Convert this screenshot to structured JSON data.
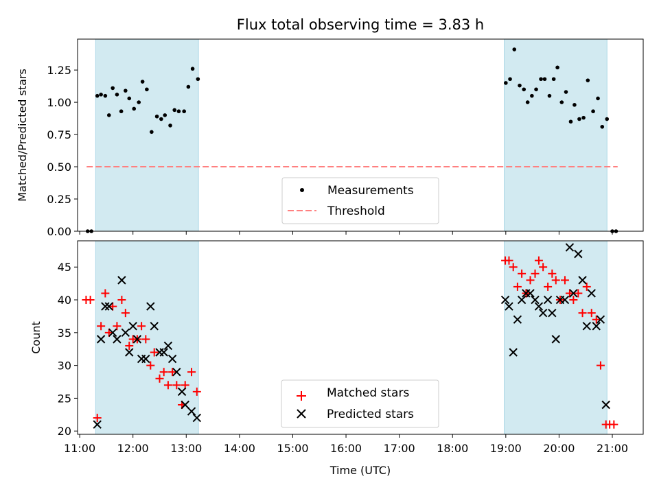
{
  "chart_data": {
    "type": "scatter",
    "title": "Flux total observing time = 3.83 h",
    "xlabel": "Time (UTC)",
    "x_unit": "hours UTC",
    "xlim": [
      10.96,
      21.58
    ],
    "x_ticks": [
      11,
      12,
      13,
      14,
      15,
      16,
      17,
      18,
      19,
      20,
      21
    ],
    "x_tick_labels": [
      "11:00",
      "12:00",
      "13:00",
      "14:00",
      "15:00",
      "16:00",
      "17:00",
      "18:00",
      "19:00",
      "20:00",
      "21:00"
    ],
    "observing_windows": [
      [
        11.3,
        13.23
      ],
      [
        18.97,
        20.9
      ]
    ],
    "shade_color": "#add8e6",
    "panels": [
      {
        "name": "ratio",
        "ylabel": "Matched/Predicted stars",
        "ylim": [
          0.0,
          1.49
        ],
        "y_ticks": [
          0.0,
          0.25,
          0.5,
          0.75,
          1.0,
          1.25
        ],
        "y_tick_labels": [
          "0.00",
          "0.25",
          "0.50",
          "0.75",
          "1.00",
          "1.25"
        ],
        "threshold": {
          "label": "Threshold",
          "value": 0.5,
          "x_range": [
            11.13,
            21.1
          ],
          "color": "#ff8080"
        },
        "legend": [
          "Measurements",
          "Threshold"
        ],
        "series": [
          {
            "name": "Measurements",
            "color": "#000000",
            "marker": "dot",
            "points": [
              [
                11.15,
                0.0
              ],
              [
                11.22,
                0.0
              ],
              [
                11.33,
                1.05
              ],
              [
                11.4,
                1.06
              ],
              [
                11.48,
                1.05
              ],
              [
                11.55,
                0.9
              ],
              [
                11.62,
                1.11
              ],
              [
                11.7,
                1.06
              ],
              [
                11.78,
                0.93
              ],
              [
                11.86,
                1.09
              ],
              [
                11.93,
                1.03
              ],
              [
                12.02,
                0.95
              ],
              [
                12.11,
                1.0
              ],
              [
                12.18,
                1.16
              ],
              [
                12.26,
                1.1
              ],
              [
                12.35,
                0.77
              ],
              [
                12.45,
                0.89
              ],
              [
                12.53,
                0.87
              ],
              [
                12.6,
                0.9
              ],
              [
                12.7,
                0.82
              ],
              [
                12.78,
                0.94
              ],
              [
                12.86,
                0.93
              ],
              [
                12.96,
                0.93
              ],
              [
                13.04,
                1.12
              ],
              [
                13.12,
                1.26
              ],
              [
                13.22,
                1.18
              ],
              [
                19.0,
                1.15
              ],
              [
                19.08,
                1.18
              ],
              [
                19.16,
                1.41
              ],
              [
                19.26,
                1.13
              ],
              [
                19.34,
                1.1
              ],
              [
                19.41,
                1.0
              ],
              [
                19.49,
                1.05
              ],
              [
                19.57,
                1.1
              ],
              [
                19.66,
                1.18
              ],
              [
                19.73,
                1.18
              ],
              [
                19.82,
                1.05
              ],
              [
                19.9,
                1.18
              ],
              [
                19.97,
                1.27
              ],
              [
                20.05,
                1.0
              ],
              [
                20.13,
                1.08
              ],
              [
                20.22,
                0.85
              ],
              [
                20.29,
                0.98
              ],
              [
                20.38,
                0.87
              ],
              [
                20.46,
                0.88
              ],
              [
                20.54,
                1.17
              ],
              [
                20.64,
                0.93
              ],
              [
                20.73,
                1.03
              ],
              [
                20.81,
                0.81
              ],
              [
                20.9,
                0.87
              ],
              [
                21.0,
                0.0
              ],
              [
                21.07,
                0.0
              ]
            ]
          }
        ]
      },
      {
        "name": "counts",
        "ylabel": "Count",
        "ylim": [
          19.5,
          49.0
        ],
        "y_ticks": [
          20,
          25,
          30,
          35,
          40,
          45
        ],
        "y_tick_labels": [
          "20",
          "25",
          "30",
          "35",
          "40",
          "45"
        ],
        "legend": [
          "Matched stars",
          "Predicted stars"
        ],
        "series": [
          {
            "name": "Matched stars",
            "color": "#ff0000",
            "marker": "plus",
            "points": [
              [
                11.12,
                40
              ],
              [
                11.2,
                40
              ],
              [
                11.33,
                22
              ],
              [
                11.4,
                36
              ],
              [
                11.48,
                41
              ],
              [
                11.55,
                35
              ],
              [
                11.62,
                39
              ],
              [
                11.7,
                36
              ],
              [
                11.79,
                40
              ],
              [
                11.86,
                38
              ],
              [
                11.93,
                33
              ],
              [
                12.0,
                34
              ],
              [
                12.08,
                34
              ],
              [
                12.16,
                36
              ],
              [
                12.24,
                34
              ],
              [
                12.33,
                30
              ],
              [
                12.4,
                32
              ],
              [
                12.5,
                28
              ],
              [
                12.58,
                29
              ],
              [
                12.66,
                27
              ],
              [
                12.74,
                29
              ],
              [
                12.82,
                27
              ],
              [
                12.92,
                24
              ],
              [
                12.98,
                27
              ],
              [
                13.1,
                29
              ],
              [
                13.2,
                26
              ],
              [
                18.99,
                46
              ],
              [
                19.06,
                46
              ],
              [
                19.14,
                45
              ],
              [
                19.22,
                42
              ],
              [
                19.3,
                44
              ],
              [
                19.38,
                41
              ],
              [
                19.46,
                43
              ],
              [
                19.55,
                44
              ],
              [
                19.62,
                46
              ],
              [
                19.7,
                45
              ],
              [
                19.79,
                42
              ],
              [
                19.87,
                44
              ],
              [
                19.94,
                43
              ],
              [
                20.02,
                40
              ],
              [
                20.11,
                43
              ],
              [
                20.2,
                41
              ],
              [
                20.27,
                40
              ],
              [
                20.36,
                41
              ],
              [
                20.44,
                38
              ],
              [
                20.52,
                42
              ],
              [
                20.61,
                38
              ],
              [
                20.7,
                37
              ],
              [
                20.78,
                30
              ],
              [
                20.88,
                21
              ],
              [
                20.95,
                21
              ],
              [
                21.03,
                21
              ]
            ]
          },
          {
            "name": "Predicted stars",
            "color": "#000000",
            "marker": "x",
            "points": [
              [
                11.33,
                21
              ],
              [
                11.4,
                34
              ],
              [
                11.48,
                39
              ],
              [
                11.55,
                39
              ],
              [
                11.62,
                35
              ],
              [
                11.7,
                34
              ],
              [
                11.79,
                43
              ],
              [
                11.86,
                35
              ],
              [
                11.93,
                32
              ],
              [
                12.0,
                36
              ],
              [
                12.08,
                34
              ],
              [
                12.16,
                31
              ],
              [
                12.24,
                31
              ],
              [
                12.33,
                39
              ],
              [
                12.4,
                36
              ],
              [
                12.5,
                32
              ],
              [
                12.58,
                32
              ],
              [
                12.66,
                33
              ],
              [
                12.74,
                31
              ],
              [
                12.82,
                29
              ],
              [
                12.92,
                26
              ],
              [
                12.98,
                24
              ],
              [
                13.1,
                23
              ],
              [
                13.2,
                22
              ],
              [
                18.99,
                40
              ],
              [
                19.06,
                39
              ],
              [
                19.14,
                32
              ],
              [
                19.22,
                37
              ],
              [
                19.3,
                40
              ],
              [
                19.38,
                41
              ],
              [
                19.46,
                41
              ],
              [
                19.55,
                40
              ],
              [
                19.62,
                39
              ],
              [
                19.7,
                38
              ],
              [
                19.79,
                40
              ],
              [
                19.87,
                38
              ],
              [
                19.94,
                34
              ],
              [
                20.02,
                40
              ],
              [
                20.11,
                40
              ],
              [
                20.2,
                48
              ],
              [
                20.27,
                41
              ],
              [
                20.36,
                47
              ],
              [
                20.44,
                43
              ],
              [
                20.52,
                36
              ],
              [
                20.61,
                41
              ],
              [
                20.7,
                36
              ],
              [
                20.78,
                37
              ],
              [
                20.88,
                24
              ]
            ]
          }
        ]
      }
    ]
  }
}
